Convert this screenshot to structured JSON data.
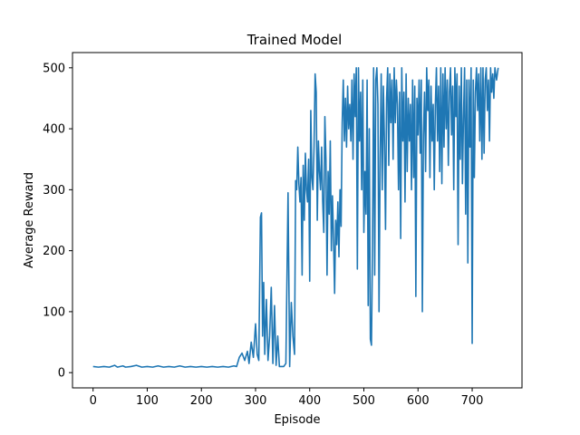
{
  "chart_data": {
    "type": "line",
    "title": "Trained Model",
    "xlabel": "Episode",
    "ylabel": "Average Reward",
    "xlim": [
      -38,
      792
    ],
    "ylim": [
      -25,
      525
    ],
    "xticks": [
      0,
      100,
      200,
      300,
      400,
      500,
      600,
      700
    ],
    "yticks": [
      0,
      100,
      200,
      300,
      400,
      500
    ],
    "grid": false,
    "series": [
      {
        "color": "#1f77b4",
        "points": [
          [
            0,
            10
          ],
          [
            10,
            9
          ],
          [
            20,
            10
          ],
          [
            30,
            9
          ],
          [
            40,
            12
          ],
          [
            45,
            9
          ],
          [
            55,
            11
          ],
          [
            60,
            9
          ],
          [
            70,
            10
          ],
          [
            80,
            12
          ],
          [
            90,
            9
          ],
          [
            100,
            10
          ],
          [
            110,
            9
          ],
          [
            120,
            11
          ],
          [
            130,
            9
          ],
          [
            140,
            10
          ],
          [
            150,
            9
          ],
          [
            160,
            11
          ],
          [
            170,
            9
          ],
          [
            180,
            10
          ],
          [
            190,
            9
          ],
          [
            200,
            10
          ],
          [
            210,
            9
          ],
          [
            220,
            10
          ],
          [
            230,
            9
          ],
          [
            240,
            10
          ],
          [
            250,
            9
          ],
          [
            260,
            11
          ],
          [
            265,
            10
          ],
          [
            270,
            25
          ],
          [
            275,
            32
          ],
          [
            280,
            20
          ],
          [
            285,
            35
          ],
          [
            288,
            15
          ],
          [
            292,
            50
          ],
          [
            296,
            25
          ],
          [
            300,
            80
          ],
          [
            303,
            30
          ],
          [
            306,
            20
          ],
          [
            309,
            255
          ],
          [
            311,
            262
          ],
          [
            313,
            60
          ],
          [
            315,
            148
          ],
          [
            317,
            30
          ],
          [
            320,
            120
          ],
          [
            323,
            20
          ],
          [
            326,
            60
          ],
          [
            329,
            140
          ],
          [
            332,
            15
          ],
          [
            335,
            110
          ],
          [
            338,
            12
          ],
          [
            341,
            60
          ],
          [
            344,
            10
          ],
          [
            348,
            10
          ],
          [
            352,
            10
          ],
          [
            356,
            15
          ],
          [
            360,
            295
          ],
          [
            363,
            10
          ],
          [
            366,
            115
          ],
          [
            369,
            60
          ],
          [
            372,
            30
          ],
          [
            374,
            315
          ],
          [
            376,
            300
          ],
          [
            378,
            370
          ],
          [
            380,
            310
          ],
          [
            382,
            280
          ],
          [
            384,
            320
          ],
          [
            386,
            160
          ],
          [
            388,
            340
          ],
          [
            390,
            250
          ],
          [
            392,
            360
          ],
          [
            394,
            300
          ],
          [
            396,
            280
          ],
          [
            398,
            350
          ],
          [
            400,
            150
          ],
          [
            402,
            430
          ],
          [
            404,
            320
          ],
          [
            406,
            300
          ],
          [
            408,
            370
          ],
          [
            410,
            490
          ],
          [
            412,
            460
          ],
          [
            414,
            250
          ],
          [
            416,
            380
          ],
          [
            418,
            330
          ],
          [
            420,
            300
          ],
          [
            422,
            370
          ],
          [
            424,
            280
          ],
          [
            426,
            230
          ],
          [
            428,
            420
          ],
          [
            430,
            350
          ],
          [
            432,
            160
          ],
          [
            434,
            330
          ],
          [
            436,
            260
          ],
          [
            438,
            380
          ],
          [
            440,
            200
          ],
          [
            442,
            290
          ],
          [
            444,
            220
          ],
          [
            446,
            130
          ],
          [
            448,
            250
          ],
          [
            450,
            210
          ],
          [
            452,
            280
          ],
          [
            454,
            190
          ],
          [
            456,
            300
          ],
          [
            458,
            240
          ],
          [
            460,
            410
          ],
          [
            462,
            480
          ],
          [
            464,
            380
          ],
          [
            466,
            450
          ],
          [
            468,
            370
          ],
          [
            470,
            470
          ],
          [
            472,
            400
          ],
          [
            474,
            440
          ],
          [
            476,
            380
          ],
          [
            478,
            480
          ],
          [
            480,
            350
          ],
          [
            482,
            490
          ],
          [
            484,
            420
          ],
          [
            486,
            500
          ],
          [
            488,
            170
          ],
          [
            490,
            500
          ],
          [
            492,
            380
          ],
          [
            494,
            460
          ],
          [
            496,
            300
          ],
          [
            498,
            480
          ],
          [
            500,
            230
          ],
          [
            502,
            330
          ],
          [
            504,
            260
          ],
          [
            506,
            480
          ],
          [
            508,
            110
          ],
          [
            510,
            400
          ],
          [
            512,
            55
          ],
          [
            514,
            45
          ],
          [
            516,
            210
          ],
          [
            518,
            500
          ],
          [
            520,
            160
          ],
          [
            522,
            480
          ],
          [
            524,
            500
          ],
          [
            526,
            440
          ],
          [
            528,
            100
          ],
          [
            530,
            350
          ],
          [
            532,
            490
          ],
          [
            534,
            300
          ],
          [
            536,
            470
          ],
          [
            538,
            380
          ],
          [
            540,
            235
          ],
          [
            542,
            450
          ],
          [
            544,
            500
          ],
          [
            546,
            340
          ],
          [
            548,
            490
          ],
          [
            550,
            410
          ],
          [
            552,
            480
          ],
          [
            554,
            350
          ],
          [
            556,
            500
          ],
          [
            558,
            410
          ],
          [
            560,
            480
          ],
          [
            562,
            440
          ],
          [
            564,
            300
          ],
          [
            566,
            460
          ],
          [
            568,
            220
          ],
          [
            570,
            500
          ],
          [
            572,
            380
          ],
          [
            574,
            460
          ],
          [
            576,
            280
          ],
          [
            578,
            490
          ],
          [
            580,
            330
          ],
          [
            582,
            450
          ],
          [
            584,
            380
          ],
          [
            586,
            440
          ],
          [
            588,
            300
          ],
          [
            590,
            480
          ],
          [
            592,
            320
          ],
          [
            594,
            470
          ],
          [
            596,
            125
          ],
          [
            598,
            450
          ],
          [
            600,
            390
          ],
          [
            602,
            480
          ],
          [
            604,
            360
          ],
          [
            606,
            480
          ],
          [
            608,
            100
          ],
          [
            610,
            390
          ],
          [
            612,
            460
          ],
          [
            614,
            330
          ],
          [
            616,
            500
          ],
          [
            618,
            430
          ],
          [
            620,
            480
          ],
          [
            622,
            320
          ],
          [
            624,
            470
          ],
          [
            626,
            380
          ],
          [
            628,
            440
          ],
          [
            630,
            300
          ],
          [
            632,
            440
          ],
          [
            634,
            500
          ],
          [
            636,
            380
          ],
          [
            638,
            470
          ],
          [
            640,
            330
          ],
          [
            642,
            500
          ],
          [
            644,
            310
          ],
          [
            646,
            490
          ],
          [
            648,
            370
          ],
          [
            650,
            500
          ],
          [
            652,
            400
          ],
          [
            654,
            480
          ],
          [
            656,
            340
          ],
          [
            658,
            460
          ],
          [
            660,
            500
          ],
          [
            662,
            390
          ],
          [
            664,
            470
          ],
          [
            666,
            300
          ],
          [
            668,
            500
          ],
          [
            670,
            420
          ],
          [
            672,
            490
          ],
          [
            674,
            210
          ],
          [
            676,
            470
          ],
          [
            678,
            350
          ],
          [
            680,
            500
          ],
          [
            682,
            310
          ],
          [
            684,
            420
          ],
          [
            686,
            500
          ],
          [
            688,
            260
          ],
          [
            690,
            480
          ],
          [
            692,
            180
          ],
          [
            694,
            480
          ],
          [
            696,
            370
          ],
          [
            698,
            500
          ],
          [
            700,
            48
          ],
          [
            702,
            480
          ],
          [
            704,
            320
          ],
          [
            706,
            460
          ],
          [
            708,
            500
          ],
          [
            710,
            430
          ],
          [
            712,
            490
          ],
          [
            714,
            380
          ],
          [
            716,
            500
          ],
          [
            718,
            350
          ],
          [
            720,
            500
          ],
          [
            722,
            360
          ],
          [
            724,
            480
          ],
          [
            726,
            500
          ],
          [
            728,
            430
          ],
          [
            730,
            480
          ],
          [
            732,
            380
          ],
          [
            734,
            500
          ],
          [
            736,
            460
          ],
          [
            738,
            490
          ],
          [
            740,
            450
          ],
          [
            742,
            500
          ],
          [
            745,
            480
          ],
          [
            748,
            500
          ]
        ]
      }
    ]
  }
}
